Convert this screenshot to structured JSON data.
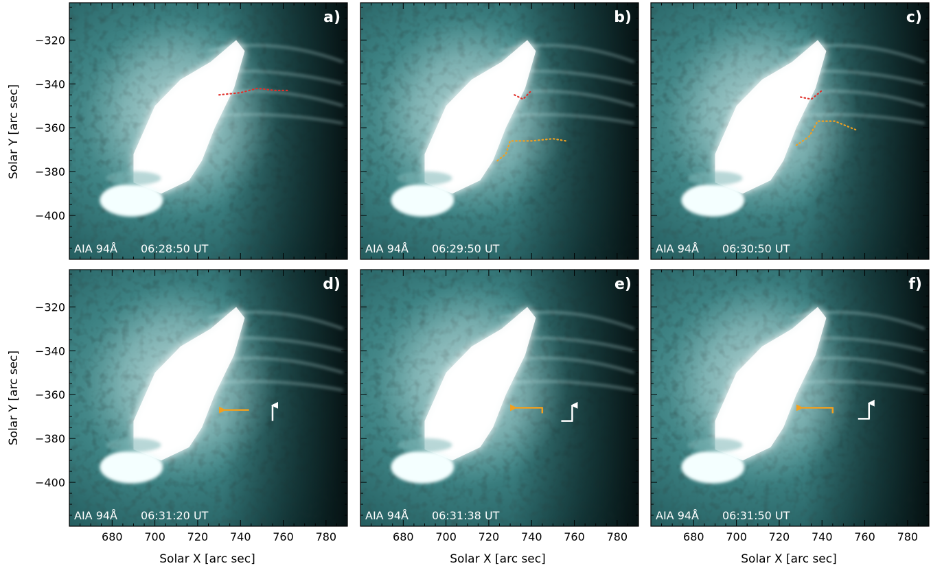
{
  "figure": {
    "axis_labels": {
      "x": "Solar X [arc sec]",
      "y": "Solar Y [arc sec]"
    },
    "x_ticks": [
      "680",
      "700",
      "720",
      "740",
      "760",
      "780"
    ],
    "y_ticks": [
      "−320",
      "−340",
      "−360",
      "−380",
      "−400"
    ],
    "xlim": [
      660,
      790
    ],
    "ylim": [
      -420,
      -303
    ],
    "colors": {
      "image_dark": "#0c2a2b",
      "image_mid": "#2c6f70",
      "image_bright": "#ffffff",
      "red_trace": "#e0302b",
      "orange_trace": "#f0a020",
      "arrow_white": "#ffffff"
    },
    "panels": [
      {
        "label": "a)",
        "instrument": "AIA 94Å",
        "time": "06:28:50 UT",
        "traces": [
          {
            "color": "red",
            "points": [
              [
                730,
                -345
              ],
              [
                740,
                -344
              ],
              [
                748,
                -342
              ],
              [
                756,
                -343
              ],
              [
                762,
                -343
              ]
            ]
          }
        ],
        "arrows": []
      },
      {
        "label": "b)",
        "instrument": "AIA 94Å",
        "time": "06:29:50 UT",
        "traces": [
          {
            "color": "red",
            "points": [
              [
                732,
                -345
              ],
              [
                736,
                -347
              ],
              [
                740,
                -343
              ]
            ]
          },
          {
            "color": "orange",
            "points": [
              [
                724,
                -375
              ],
              [
                728,
                -372
              ],
              [
                730,
                -366
              ],
              [
                740,
                -366
              ],
              [
                750,
                -365
              ],
              [
                756,
                -366
              ]
            ]
          }
        ],
        "arrows": []
      },
      {
        "label": "c)",
        "instrument": "AIA 94Å",
        "time": "06:30:50 UT",
        "traces": [
          {
            "color": "red",
            "points": [
              [
                730,
                -346
              ],
              [
                735,
                -347
              ],
              [
                740,
                -343
              ]
            ]
          },
          {
            "color": "orange",
            "points": [
              [
                728,
                -368
              ],
              [
                734,
                -364
              ],
              [
                738,
                -357
              ],
              [
                746,
                -357
              ],
              [
                756,
                -361
              ]
            ]
          }
        ],
        "arrows": []
      },
      {
        "label": "d)",
        "instrument": "AIA 94Å",
        "time": "06:31:20 UT",
        "traces": [],
        "arrows": [
          {
            "color": "orange",
            "from": [
              744,
              -367
            ],
            "to": [
              730,
              -367
            ],
            "tick": false
          },
          {
            "color": "white",
            "from": [
              755,
              -372
            ],
            "to": [
              755,
              -363
            ],
            "elbow": false
          }
        ]
      },
      {
        "label": "e)",
        "instrument": "AIA 94Å",
        "time": "06:31:38 UT",
        "traces": [],
        "arrows": [
          {
            "color": "orange",
            "from": [
              745,
              -366
            ],
            "to": [
              730,
              -366
            ],
            "tick": true
          },
          {
            "color": "white",
            "from": [
              759,
              -372
            ],
            "to": [
              759,
              -363
            ],
            "elbow": true
          }
        ]
      },
      {
        "label": "f)",
        "instrument": "AIA 94Å",
        "time": "06:31:50 UT",
        "traces": [],
        "arrows": [
          {
            "color": "orange",
            "from": [
              745,
              -366
            ],
            "to": [
              728,
              -366
            ],
            "tick": true
          },
          {
            "color": "white",
            "from": [
              762,
              -371
            ],
            "to": [
              762,
              -362
            ],
            "elbow": true
          }
        ]
      }
    ]
  }
}
